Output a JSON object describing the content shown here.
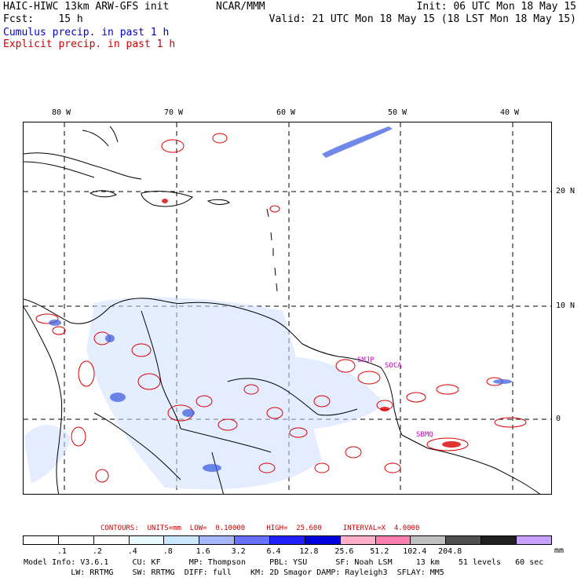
{
  "header": {
    "model_title": "HAIC-HIWC 13km ARW-GFS init",
    "org": "NCAR/MMM",
    "init": "Init: 06 UTC Mon 18 May 15",
    "fcst": "Fcst:    15 h",
    "valid": "Valid: 21 UTC Mon 18 May 15 (18 LST Mon 18 May 15)",
    "cumulus_legend": "Cumulus precip. in past 1 h",
    "explicit_legend": "Explicit precip. in past 1 h"
  },
  "map": {
    "lon_labels": [
      "80 W",
      "70 W",
      "60 W",
      "50 W",
      "40 W"
    ],
    "lat_labels": [
      "20 N",
      "10 N",
      "0"
    ],
    "station_labels": [
      "SMJP",
      "SOCA",
      "SBMQ"
    ],
    "colors": {
      "cumulus": "#4060e0",
      "explicit": "#dd0000",
      "coast": "#000000",
      "station": "#cc00cc"
    }
  },
  "contours_line": {
    "label": "CONTOURS:  UNITS=mm  LOW=  0.10000     HIGH=  25.600     INTERVAL=X  4.0000"
  },
  "colorbar": {
    "unit": "mm",
    "ticks": [
      ".1",
      ".2",
      ".4",
      ".8",
      "1.6",
      "3.2",
      "6.4",
      "12.8",
      "25.6",
      "51.2",
      "102.4",
      "204.8"
    ],
    "colors": [
      "#ffffff",
      "#ffffff",
      "#ffffff",
      "#e8f8fc",
      "#cce8ff",
      "#a8b8ff",
      "#6870ff",
      "#2020ff",
      "#0000dd",
      "#ffb0c8",
      "#ff80b0",
      "#c0c0c0",
      "#505050",
      "#202020",
      "#c8a0ff"
    ]
  },
  "footer": {
    "line1": "Model Info: V3.6.1     CU: KF      MP: Thompson     PBL: YSU      SF: Noah LSM     13 km    51 levels   60 sec",
    "line2": "          LW: RRTMG    SW: RRTMG  DIFF: full    KM: 2D Smagor DAMP: Rayleigh3  SFLAY: MM5"
  }
}
